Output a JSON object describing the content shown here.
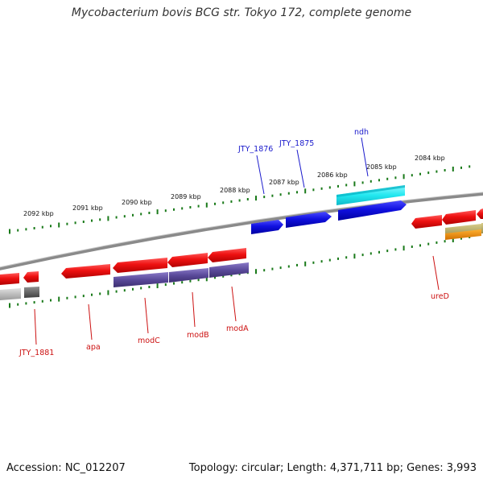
{
  "title": "Mycobacterium bovis BCG str. Tokyo 172, complete genome",
  "footer": {
    "accession": "Accession: NC_012207",
    "info": "Topology: circular; Length: 4,371,711 bp; Genes: 3,993"
  },
  "colors": {
    "forward_label": "#1a1acc",
    "reverse_label": "#cc1111",
    "forward_gene": "#1010e0",
    "reverse_gene": "#ee1111",
    "ndh_gene": "#22e8f0",
    "operon_bar": "#5a4a9a",
    "backbone": "#808080",
    "tick": "#1a7a1a"
  },
  "scale_labels": [
    "2092 kbp",
    "2091 kbp",
    "2090 kbp",
    "2089 kbp",
    "2088 kbp",
    "2087 kbp",
    "2086 kbp",
    "2085 kbp",
    "2084 kbp"
  ],
  "forward_genes": [
    "JTY_1876",
    "JTY_1875",
    "ndh"
  ],
  "reverse_genes": [
    "JTY_1881",
    "apa",
    "modC",
    "modB",
    "modA",
    "ureD"
  ]
}
